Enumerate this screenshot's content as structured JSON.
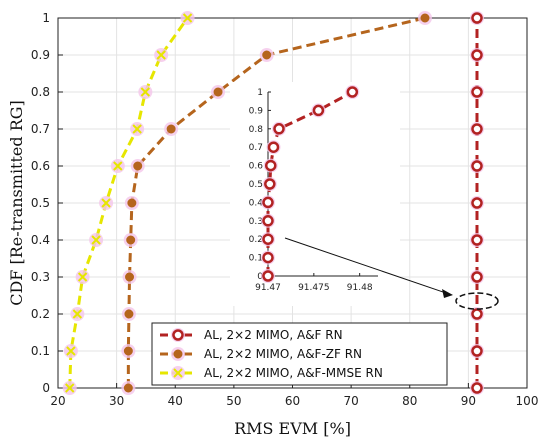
{
  "chart_data": {
    "type": "line",
    "xlabel": "RMS EVM [%]",
    "ylabel": "CDF [Re-transmitted RG]",
    "xlim": [
      20,
      100
    ],
    "ylim": [
      0,
      1
    ],
    "xticks": [
      "20",
      "30",
      "40",
      "50",
      "60",
      "70",
      "80",
      "90",
      "100"
    ],
    "yticks": [
      "0",
      "0.1",
      "0.2",
      "0.3",
      "0.4",
      "0.5",
      "0.6",
      "0.7",
      "0.8",
      "0.9",
      "1"
    ],
    "grid": true,
    "legend_position": "bottom-center",
    "series": [
      {
        "name": "AL, 2×2 MIMO, A&F RN",
        "color": "#b22222",
        "marker": "circle-open",
        "linestyle": "dashed",
        "x": [
          91.47,
          91.47,
          91.47,
          91.47,
          91.47,
          91.47,
          91.47,
          91.47,
          91.47,
          91.47,
          91.47
        ],
        "y": [
          0,
          0.1,
          0.2,
          0.3,
          0.4,
          0.5,
          0.6,
          0.7,
          0.8,
          0.9,
          1.0
        ]
      },
      {
        "name": "AL, 2×2 MIMO, A&F-ZF RN",
        "color": "#b5651d",
        "marker": "circle-filled",
        "linestyle": "dashed",
        "x": [
          32.0,
          32.0,
          32.1,
          32.2,
          32.4,
          32.6,
          33.6,
          39.3,
          47.3,
          55.6,
          82.6
        ],
        "y": [
          0,
          0.1,
          0.2,
          0.3,
          0.4,
          0.5,
          0.6,
          0.7,
          0.8,
          0.9,
          1.0
        ]
      },
      {
        "name": "AL, 2×2 MIMO, A&F-MMSE RN",
        "color": "#e6e600",
        "marker": "x",
        "linestyle": "dashed",
        "x": [
          22.0,
          22.2,
          23.3,
          24.2,
          26.5,
          28.2,
          30.2,
          33.5,
          34.9,
          37.6,
          42.1
        ],
        "y": [
          0,
          0.1,
          0.2,
          0.3,
          0.4,
          0.5,
          0.6,
          0.7,
          0.8,
          0.9,
          1.0
        ]
      }
    ],
    "inset": {
      "xlim": [
        91.47,
        91.482
      ],
      "ylim": [
        0,
        1
      ],
      "xticks": [
        "91.47",
        "91.475",
        "91.48"
      ],
      "xtick_values": [
        91.47,
        91.475,
        91.48
      ],
      "yticks": [
        "0",
        "0.1",
        "0.2",
        "0.3",
        "0.4",
        "0.5",
        "0.6",
        "0.7",
        "0.8",
        "0.9",
        "1"
      ],
      "series_ref": 0,
      "x": [
        91.47,
        91.47,
        91.47,
        91.47,
        91.47,
        91.4702,
        91.4703,
        91.4706,
        91.4712,
        91.4755,
        91.4792
      ],
      "y": [
        0,
        0.1,
        0.2,
        0.3,
        0.4,
        0.5,
        0.6,
        0.7,
        0.8,
        0.9,
        1.0
      ]
    }
  }
}
